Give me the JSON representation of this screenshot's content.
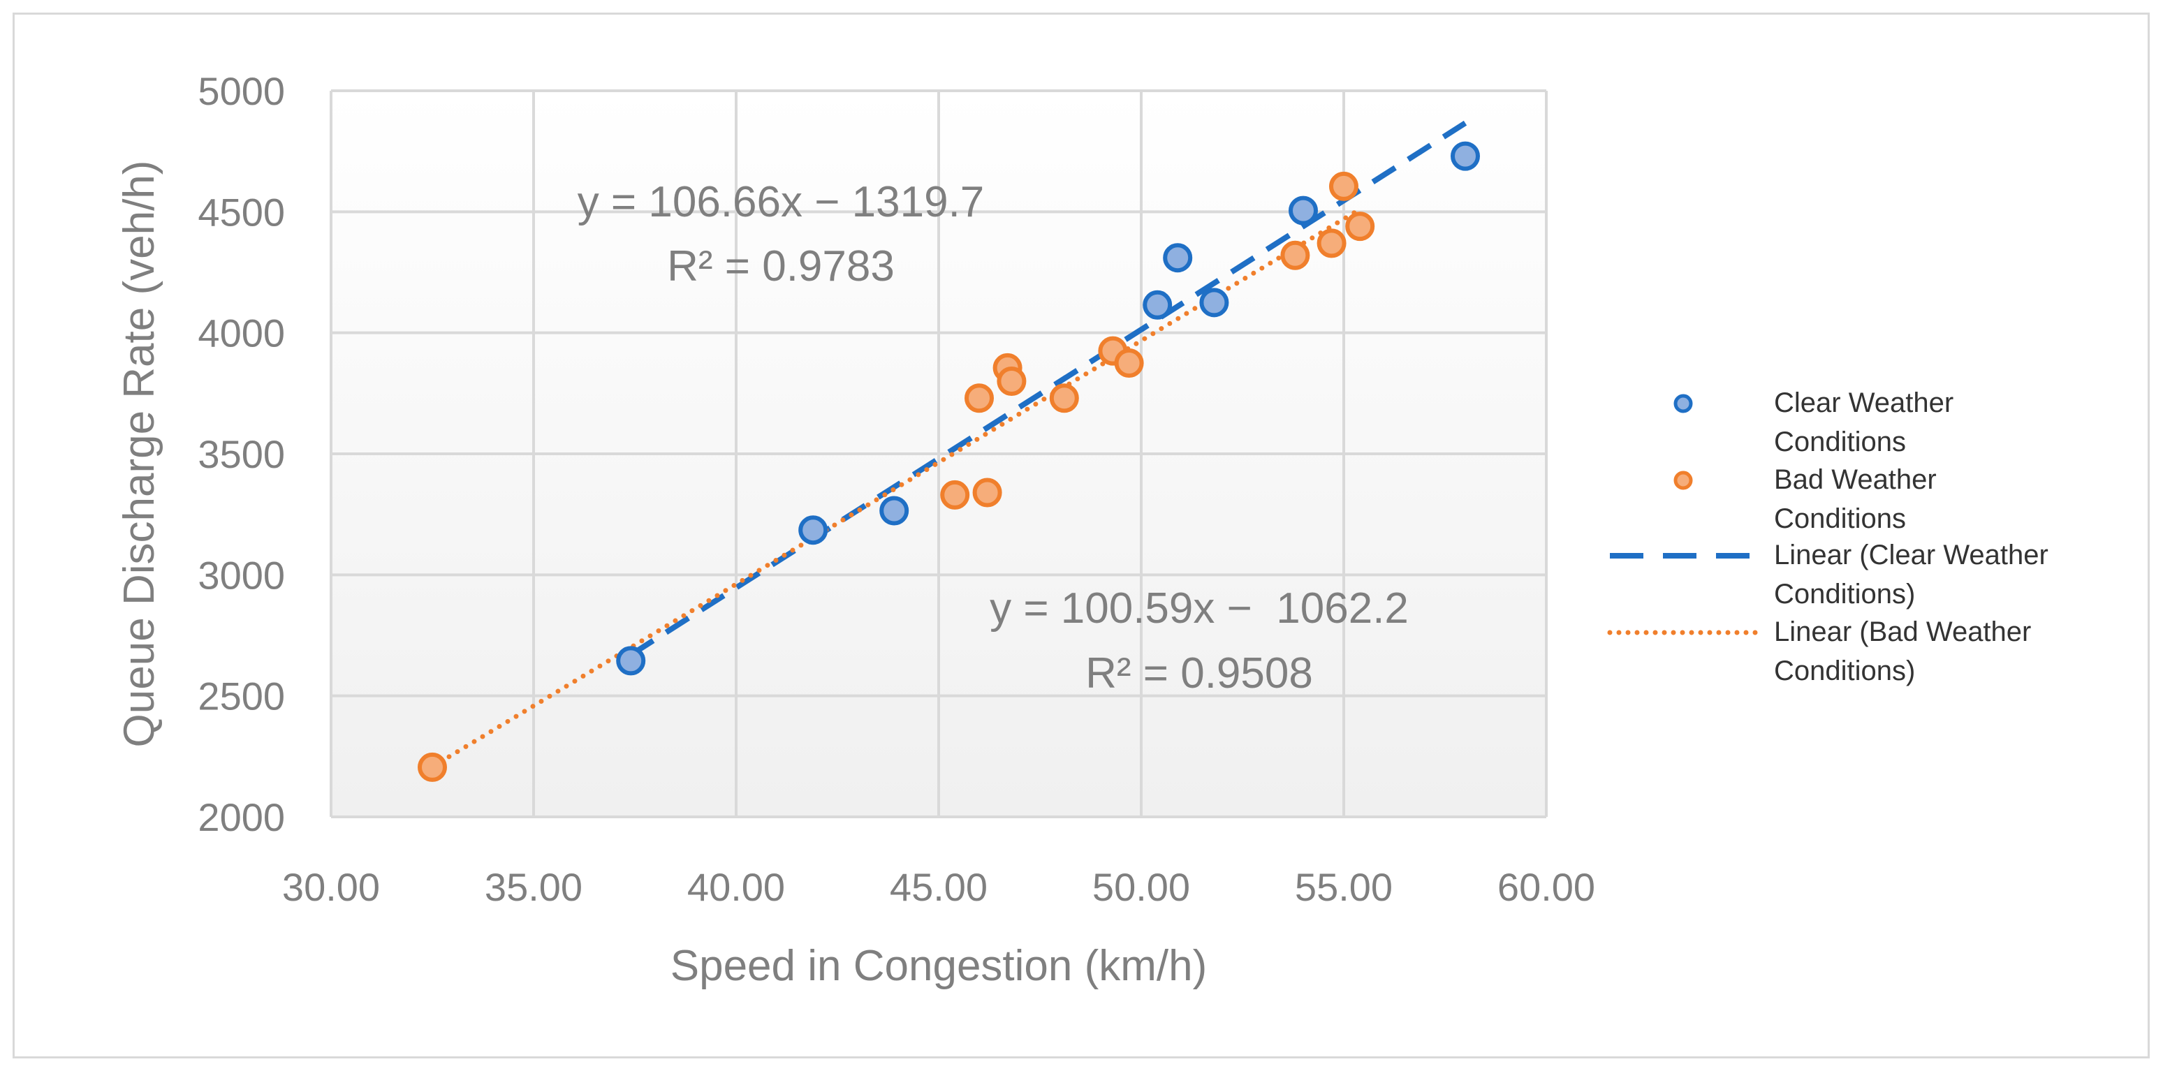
{
  "chart_data": {
    "type": "scatter",
    "title": "",
    "xlabel": "Speed in Congestion (km/h)",
    "ylabel": "Queue Discharge Rate (veh/h)",
    "xlim": [
      30,
      60
    ],
    "ylim": [
      2000,
      5000
    ],
    "x_ticks": [
      "30.00",
      "35.00",
      "40.00",
      "45.00",
      "50.00",
      "55.00",
      "60.00"
    ],
    "y_ticks": [
      "2000",
      "2500",
      "3000",
      "3500",
      "4000",
      "4500",
      "5000"
    ],
    "grid": true,
    "legend_position": "right",
    "series": [
      {
        "name": "Clear Weather Conditions",
        "color": "#1f6fc5",
        "fill": "#8fb0e0",
        "points": [
          {
            "x": 37.4,
            "y": 2645
          },
          {
            "x": 41.9,
            "y": 3185
          },
          {
            "x": 43.9,
            "y": 3265
          },
          {
            "x": 50.4,
            "y": 4115
          },
          {
            "x": 50.9,
            "y": 4310
          },
          {
            "x": 51.8,
            "y": 4125
          },
          {
            "x": 54.0,
            "y": 4505
          },
          {
            "x": 58.0,
            "y": 4730
          }
        ]
      },
      {
        "name": "Bad Weather Conditions",
        "color": "#f07f2c",
        "fill": "#f6ad7a",
        "points": [
          {
            "x": 32.5,
            "y": 2205
          },
          {
            "x": 45.4,
            "y": 3330
          },
          {
            "x": 46.2,
            "y": 3340
          },
          {
            "x": 46.0,
            "y": 3730
          },
          {
            "x": 46.7,
            "y": 3855
          },
          {
            "x": 46.8,
            "y": 3800
          },
          {
            "x": 48.1,
            "y": 3730
          },
          {
            "x": 49.3,
            "y": 3925
          },
          {
            "x": 49.7,
            "y": 3875
          },
          {
            "x": 53.8,
            "y": 4320
          },
          {
            "x": 54.7,
            "y": 4370
          },
          {
            "x": 55.0,
            "y": 4605
          },
          {
            "x": 55.4,
            "y": 4440
          }
        ]
      }
    ],
    "trendlines": [
      {
        "name": "Linear (Clear Weather Conditions)",
        "color": "#1f6fc5",
        "style": "dashed",
        "slope": 106.66,
        "intercept": -1319.7,
        "x_range": [
          37.4,
          58.0
        ],
        "equation": "y = 106.66x − 1319.7",
        "r2": "R² = 0.9783"
      },
      {
        "name": "Linear (Bad Weather Conditions)",
        "color": "#f07f2c",
        "style": "dotted",
        "slope": 100.59,
        "intercept": -1062.2,
        "x_range": [
          32.5,
          55.4
        ],
        "equation": "y = 100.59x −  1062.2",
        "r2": "R² = 0.9508"
      }
    ],
    "legend": [
      {
        "line1": "Clear Weather",
        "line2": "Conditions",
        "kind": "marker",
        "color": "#1f6fc5",
        "fill": "#8fb0e0"
      },
      {
        "line1": "Bad Weather",
        "line2": "Conditions",
        "kind": "marker",
        "color": "#f07f2c",
        "fill": "#f6ad7a"
      },
      {
        "line1": "Linear (Clear Weather",
        "line2": "Conditions)",
        "kind": "dashed",
        "color": "#1f6fc5"
      },
      {
        "line1": "Linear (Bad Weather",
        "line2": "Conditions)",
        "kind": "dotted",
        "color": "#f07f2c"
      }
    ]
  }
}
